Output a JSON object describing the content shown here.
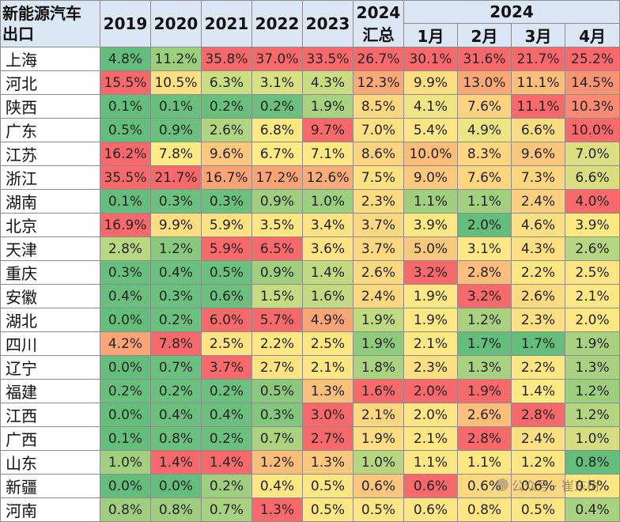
{
  "header": {
    "corner_line1": "新能源汽车",
    "corner_line2": "出口",
    "years": [
      "2019",
      "2020",
      "2021",
      "2022",
      "2023"
    ],
    "total_year": "2024",
    "total_label": "汇总",
    "month_group": "2024",
    "months": [
      "1月",
      "2月",
      "3月",
      "4月"
    ]
  },
  "rows": [
    {
      "province": "上海",
      "values": [
        "4.8%",
        "11.2%",
        "35.8%",
        "37.0%",
        "33.5%",
        "26.7%",
        "30.1%",
        "31.6%",
        "21.7%",
        "25.2%"
      ]
    },
    {
      "province": "河北",
      "values": [
        "15.5%",
        "10.5%",
        "6.3%",
        "3.1%",
        "4.3%",
        "12.3%",
        "9.9%",
        "13.0%",
        "11.1%",
        "14.5%"
      ]
    },
    {
      "province": "陕西",
      "values": [
        "0.1%",
        "0.1%",
        "0.2%",
        "0.2%",
        "1.9%",
        "8.5%",
        "4.1%",
        "7.6%",
        "11.1%",
        "10.3%"
      ]
    },
    {
      "province": "广东",
      "values": [
        "0.5%",
        "0.9%",
        "2.6%",
        "6.8%",
        "9.7%",
        "7.0%",
        "5.4%",
        "4.9%",
        "6.6%",
        "10.0%"
      ]
    },
    {
      "province": "江苏",
      "values": [
        "16.2%",
        "7.8%",
        "9.6%",
        "6.7%",
        "7.1%",
        "8.6%",
        "10.0%",
        "8.3%",
        "9.6%",
        "7.0%"
      ]
    },
    {
      "province": "浙江",
      "values": [
        "35.5%",
        "21.7%",
        "16.7%",
        "17.2%",
        "12.6%",
        "7.5%",
        "9.0%",
        "7.6%",
        "7.3%",
        "6.6%"
      ]
    },
    {
      "province": "湖南",
      "values": [
        "0.1%",
        "0.3%",
        "0.3%",
        "0.9%",
        "1.0%",
        "2.3%",
        "1.1%",
        "1.1%",
        "2.4%",
        "4.0%"
      ]
    },
    {
      "province": "北京",
      "values": [
        "16.9%",
        "9.9%",
        "5.9%",
        "3.5%",
        "3.4%",
        "3.7%",
        "3.9%",
        "2.0%",
        "4.6%",
        "3.9%"
      ]
    },
    {
      "province": "天津",
      "values": [
        "2.8%",
        "1.2%",
        "5.9%",
        "6.5%",
        "3.6%",
        "3.7%",
        "5.0%",
        "3.1%",
        "4.3%",
        "2.6%"
      ]
    },
    {
      "province": "重庆",
      "values": [
        "0.3%",
        "0.4%",
        "0.5%",
        "0.9%",
        "1.4%",
        "2.6%",
        "3.2%",
        "2.8%",
        "2.2%",
        "2.5%"
      ]
    },
    {
      "province": "安徽",
      "values": [
        "0.4%",
        "0.3%",
        "0.6%",
        "1.5%",
        "1.6%",
        "2.4%",
        "1.9%",
        "3.2%",
        "2.6%",
        "2.1%"
      ]
    },
    {
      "province": "湖北",
      "values": [
        "0.0%",
        "0.2%",
        "6.0%",
        "5.7%",
        "4.9%",
        "1.9%",
        "1.9%",
        "1.2%",
        "2.3%",
        "2.0%"
      ]
    },
    {
      "province": "四川",
      "values": [
        "4.2%",
        "7.8%",
        "2.5%",
        "2.2%",
        "2.5%",
        "1.9%",
        "2.1%",
        "1.7%",
        "1.7%",
        "1.9%"
      ]
    },
    {
      "province": "辽宁",
      "values": [
        "0.0%",
        "0.7%",
        "3.7%",
        "2.7%",
        "2.1%",
        "1.8%",
        "2.3%",
        "1.3%",
        "2.2%",
        "1.3%"
      ]
    },
    {
      "province": "福建",
      "values": [
        "0.2%",
        "0.2%",
        "0.2%",
        "0.5%",
        "1.3%",
        "1.6%",
        "2.0%",
        "1.9%",
        "1.4%",
        "1.2%"
      ]
    },
    {
      "province": "江西",
      "values": [
        "0.0%",
        "0.4%",
        "0.4%",
        "0.3%",
        "3.0%",
        "2.1%",
        "2.0%",
        "2.6%",
        "2.8%",
        "1.2%"
      ]
    },
    {
      "province": "广西",
      "values": [
        "0.1%",
        "0.8%",
        "0.2%",
        "0.7%",
        "2.7%",
        "1.9%",
        "2.1%",
        "2.8%",
        "2.4%",
        "1.0%"
      ]
    },
    {
      "province": "山东",
      "values": [
        "1.0%",
        "1.4%",
        "1.4%",
        "1.2%",
        "1.3%",
        "1.0%",
        "1.1%",
        "1.1%",
        "1.2%",
        "0.8%"
      ]
    },
    {
      "province": "新疆",
      "values": [
        "0.0%",
        "0.0%",
        "0.2%",
        "0.4%",
        "0.5%",
        "0.6%",
        "0.6%",
        "0.6%",
        "0.6%",
        "0.5%"
      ]
    },
    {
      "province": "河南",
      "values": [
        "0.8%",
        "0.8%",
        "0.7%",
        "1.3%",
        "0.5%",
        "0.5%",
        "0.6%",
        "0.8%",
        "0.5%",
        "0.4%"
      ]
    }
  ],
  "cell_colors": [
    [
      "#63be7b",
      "#9bcf7c",
      "#f8696b",
      "#f8696b",
      "#f8696b",
      "#f8696b",
      "#f8696b",
      "#f8696b",
      "#f8696b",
      "#f8696b"
    ],
    [
      "#f8696b",
      "#fee082",
      "#ccdc81",
      "#d9e082",
      "#cbdb81",
      "#fba977",
      "#fede81",
      "#fbaa77",
      "#fcbf7b",
      "#fa9473"
    ],
    [
      "#63be7b",
      "#69c07c",
      "#68c07b",
      "#6ac07c",
      "#a8d27f",
      "#fed880",
      "#f0e584",
      "#fed27f",
      "#f8696b",
      "#fa8a72"
    ],
    [
      "#63be7b",
      "#6ac07c",
      "#b0d47f",
      "#fde982",
      "#f8696b",
      "#ffe082",
      "#fde683",
      "#ede482",
      "#fedc81",
      "#f8696b"
    ],
    [
      "#f8696b",
      "#feea83",
      "#fdc87d",
      "#fdea83",
      "#fee884",
      "#ffd480",
      "#fcbd7b",
      "#ffd680",
      "#fdc67d",
      "#dcdf81"
    ],
    [
      "#f8696b",
      "#f8696b",
      "#fba476",
      "#fba476",
      "#fbac78",
      "#fee182",
      "#fec97d",
      "#fed680",
      "#fed680",
      "#d9df81"
    ],
    [
      "#63be7b",
      "#6ac07c",
      "#6ac07c",
      "#9fcf7e",
      "#9ccf7e",
      "#feda81",
      "#a0cf7e",
      "#a1d07e",
      "#fecf7f",
      "#f8696b"
    ],
    [
      "#f8696b",
      "#fedd81",
      "#fde282",
      "#fee783",
      "#fee382",
      "#fed880",
      "#fee883",
      "#63be7b",
      "#fedf82",
      "#fde982"
    ],
    [
      "#bad880",
      "#89c97d",
      "#f8696b",
      "#f8696b",
      "#fee382",
      "#fed880",
      "#f8c97d",
      "#fee883",
      "#fedf82",
      "#b6d680"
    ],
    [
      "#69c07c",
      "#6ac07c",
      "#6ac07c",
      "#9fcf7e",
      "#c1da80",
      "#fed880",
      "#f8696b",
      "#fdbd7b",
      "#fee683",
      "#fee583"
    ],
    [
      "#69c07c",
      "#6ac07c",
      "#6ac07c",
      "#c7dc81",
      "#c3da80",
      "#fed880",
      "#fee883",
      "#f8696b",
      "#feda81",
      "#fee883"
    ],
    [
      "#63be7b",
      "#6ac07c",
      "#f8696b",
      "#f8696b",
      "#fba577",
      "#c0da80",
      "#fee883",
      "#a8d27f",
      "#fee082",
      "#fee883"
    ],
    [
      "#fca476",
      "#f8696b",
      "#fee382",
      "#fee783",
      "#fee683",
      "#8fcb7d",
      "#fee883",
      "#63be7b",
      "#63be7b",
      "#a8d27f"
    ],
    [
      "#63be7b",
      "#6ac07c",
      "#f8696b",
      "#fee382",
      "#fee683",
      "#aad27f",
      "#fee082",
      "#a8d27f",
      "#fee683",
      "#a8d27f"
    ],
    [
      "#69c07c",
      "#6ac07c",
      "#6ac07c",
      "#8ac97d",
      "#f9c07c",
      "#f8696b",
      "#f8696b",
      "#f8696b",
      "#feea83",
      "#9bcf7e"
    ],
    [
      "#63be7b",
      "#6ac07c",
      "#6ac07c",
      "#82c77d",
      "#f8696b",
      "#fed680",
      "#fee683",
      "#fdbd7b",
      "#f8696b",
      "#b4d57f"
    ],
    [
      "#63be7b",
      "#6ac07c",
      "#6ac07c",
      "#aad27f",
      "#f8696b",
      "#fedc81",
      "#fee683",
      "#f8696b",
      "#fee082",
      "#d4de81"
    ],
    [
      "#a3d07e",
      "#f8696b",
      "#f8696b",
      "#fcbd7b",
      "#fdc77d",
      "#b8d680",
      "#fee683",
      "#fee683",
      "#fee683",
      "#63be7b"
    ],
    [
      "#63be7b",
      "#63be7b",
      "#9fcf7e",
      "#fee683",
      "#fee683",
      "#fdc67d",
      "#f8696b",
      "#fed880",
      "#fed880",
      "#fee683"
    ],
    [
      "#9fcf7e",
      "#9fcf7e",
      "#a8d27f",
      "#f8696b",
      "#fee683",
      "#fee683",
      "#fee683",
      "#fee683",
      "#fee683",
      "#a8d27f"
    ]
  ],
  "watermark": "公众号 · 崔东树"
}
